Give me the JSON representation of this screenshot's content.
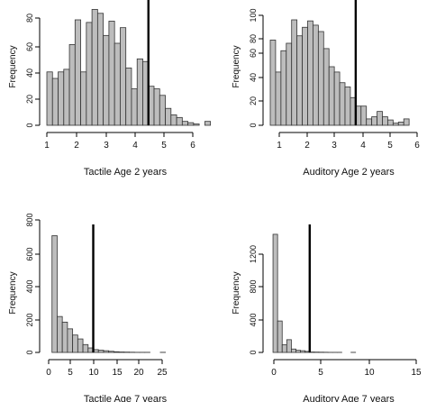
{
  "chart_data": [
    {
      "type": "bar",
      "subtype": "histogram",
      "xlabel": "Tactile Age 2 years",
      "ylabel": "Frequency",
      "bin_start": 1,
      "bin_width": 0.2,
      "values": [
        41,
        36,
        41,
        43,
        62,
        81,
        41,
        79,
        89,
        86,
        69,
        80,
        63,
        75,
        44,
        28,
        51,
        49,
        30,
        28,
        23,
        13,
        8,
        6,
        3,
        2,
        1,
        0,
        3
      ],
      "xlim": [
        1,
        6.3
      ],
      "ylim": [
        0,
        90
      ],
      "xticks": [
        "1",
        "2",
        "3",
        "4",
        "5",
        "6"
      ],
      "yticks": [
        "0",
        "20",
        "40",
        "60",
        "80"
      ],
      "reference_line_x": 4.6,
      "colors": {
        "bar_fill": "#bdbdbd",
        "bar_stroke": "#333333",
        "line": "#000000"
      }
    },
    {
      "type": "bar",
      "subtype": "histogram",
      "xlabel": "Auditory Age 2 years",
      "ylabel": "Frequency",
      "bin_start": 1,
      "bin_width": 0.2,
      "values": [
        80,
        50,
        70,
        77,
        99,
        84,
        92,
        98,
        94,
        88,
        72,
        55,
        50,
        40,
        36,
        26,
        18,
        18,
        6,
        8,
        13,
        8,
        5,
        2,
        3,
        6,
        0,
        0,
        0,
        0,
        0,
        0,
        0,
        0,
        0,
        2
      ],
      "xlim": [
        1,
        6.6
      ],
      "ylim": [
        0,
        110
      ],
      "xticks": [
        "1",
        "2",
        "3",
        "4",
        "5",
        "6"
      ],
      "yticks": [
        "0",
        "20",
        "40",
        "60",
        "80",
        "100"
      ],
      "reference_line_x": 4.2,
      "colors": {
        "bar_fill": "#bdbdbd",
        "bar_stroke": "#333333",
        "line": "#000000"
      }
    },
    {
      "type": "bar",
      "subtype": "histogram",
      "xlabel": "Tactile Age 7 years",
      "ylabel": "Frequency",
      "bin_start": 0,
      "bin_width": 1,
      "values": [
        1040,
        320,
        270,
        210,
        155,
        120,
        70,
        40,
        25,
        20,
        15,
        10,
        6,
        4,
        3,
        2,
        1,
        1,
        1,
        0,
        0,
        1
      ],
      "xlim": [
        -1,
        28
      ],
      "ylim": [
        0,
        1060
      ],
      "xticks": [
        "0",
        "5",
        "10",
        "15",
        "20",
        "25"
      ],
      "yticks": [
        "0",
        "200",
        "400",
        "600",
        "800"
      ],
      "reference_line_x": 8,
      "colors": {
        "bar_fill": "#bdbdbd",
        "bar_stroke": "#333333",
        "line": "#000000"
      }
    },
    {
      "type": "bar",
      "subtype": "histogram",
      "xlabel": "Auditory Age 7 years",
      "ylabel": "Frequency",
      "bin_start": 0,
      "bin_width": 0.5,
      "values": [
        1390,
        370,
        90,
        150,
        40,
        25,
        20,
        12,
        5,
        4,
        3,
        2,
        1,
        1,
        1,
        0,
        0,
        1
      ],
      "xlim": [
        -0.3,
        16
      ],
      "ylim": [
        0,
        1400
      ],
      "xticks": [
        "0",
        "5",
        "10",
        "15"
      ],
      "yticks": [
        "0",
        "400",
        "800",
        "1200"
      ],
      "reference_line_x": 4,
      "colors": {
        "bar_fill": "#bdbdbd",
        "bar_stroke": "#333333",
        "line": "#000000"
      }
    }
  ]
}
